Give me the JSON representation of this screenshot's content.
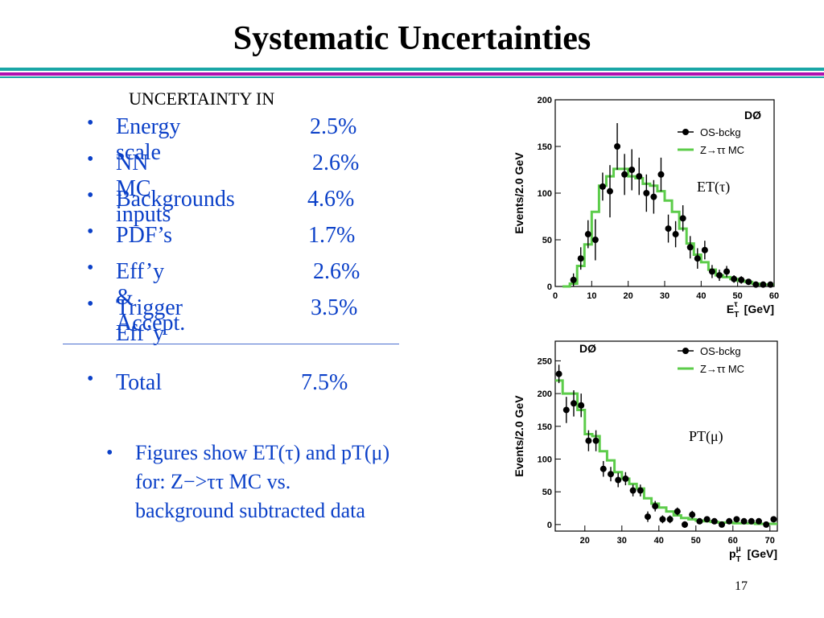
{
  "title": "Systematic Uncertainties",
  "subheading": "UNCERTAINTY IN",
  "bullet_symbol": "•",
  "items": [
    {
      "label": "Energy scale",
      "value": "2.5%"
    },
    {
      "label": "NN MC inputs",
      "value": "2.6%"
    },
    {
      "label": "Backgrounds",
      "value": "4.6%"
    },
    {
      "label": "PDF’s",
      "value": "1.7%"
    },
    {
      "label": "Eff’y & Accept.",
      "value": "2.6%"
    },
    {
      "label": "Trigger Eff’y",
      "value": "3.5%"
    }
  ],
  "total": {
    "label": "Total",
    "value": "7.5%"
  },
  "figure_note": {
    "line1": "Figures show ET(τ) and pT(μ)",
    "line2": "for: Z−>ττ MC vs.",
    "line3": "background subtracted data"
  },
  "page_number": "17",
  "colors": {
    "text_blue": "#0b40c8",
    "mc_green": "#5ccc4a",
    "rule_teal": "#1aa6a6",
    "rule_purple": "#b012b0"
  },
  "chart_data": [
    {
      "type": "scatter",
      "experiment_label": "DØ",
      "ylabel": "Events/2.0 GeV",
      "xlabel": "E_T^τ [GeV]",
      "xlabel_main": "E",
      "xlabel_sub": "T",
      "xlabel_sup": "τ",
      "xlabel_unit": "[GeV]",
      "annotation": "ET(τ)",
      "xlim": [
        0,
        60
      ],
      "ylim": [
        0,
        200
      ],
      "xticks": [
        0,
        10,
        20,
        30,
        40,
        50,
        60
      ],
      "yticks": [
        0,
        50,
        100,
        150,
        200
      ],
      "legend": [
        {
          "name": "OS-bckg",
          "kind": "points"
        },
        {
          "name": "Z→ττ MC",
          "kind": "step"
        }
      ],
      "legend_position": "top-right",
      "series": [
        {
          "name": "OS-bckg",
          "kind": "points",
          "x": [
            5,
            7,
            9,
            11,
            13,
            15,
            17,
            19,
            21,
            23,
            25,
            27,
            29,
            31,
            33,
            35,
            37,
            39,
            41,
            43,
            45,
            47,
            49,
            51,
            53,
            55,
            57,
            59
          ],
          "y": [
            7,
            30,
            56,
            50,
            107,
            102,
            150,
            120,
            125,
            118,
            100,
            96,
            120,
            62,
            56,
            73,
            42,
            30,
            39,
            16,
            12,
            16,
            8,
            7,
            5,
            2,
            2,
            2
          ],
          "err": [
            7,
            12,
            15,
            22,
            15,
            28,
            25,
            22,
            22,
            20,
            20,
            18,
            18,
            15,
            14,
            14,
            12,
            11,
            10,
            7,
            6,
            6,
            4,
            4,
            3,
            3,
            2,
            2
          ]
        },
        {
          "name": "Z→ττ MC",
          "kind": "step",
          "x": [
            2,
            4,
            6,
            8,
            10,
            12,
            14,
            16,
            18,
            20,
            22,
            24,
            26,
            28,
            30,
            32,
            34,
            36,
            38,
            40,
            42,
            44,
            46,
            48,
            50,
            52,
            54,
            56,
            58,
            60
          ],
          "y": [
            0,
            3,
            22,
            45,
            80,
            108,
            118,
            126,
            126,
            118,
            116,
            110,
            108,
            102,
            92,
            80,
            62,
            46,
            34,
            26,
            18,
            12,
            10,
            8,
            6,
            5,
            3,
            2,
            2,
            1
          ]
        }
      ]
    },
    {
      "type": "scatter",
      "experiment_label": "DØ",
      "ylabel": "Events/2.0 GeV",
      "xlabel": "p_T^μ [GeV]",
      "xlabel_main": "p",
      "xlabel_sub": "T",
      "xlabel_sup": "μ",
      "xlabel_unit": "[GeV]",
      "annotation": "PT(μ)",
      "xlim": [
        12,
        72
      ],
      "ylim": [
        -10,
        280
      ],
      "xticks": [
        20,
        30,
        40,
        50,
        60,
        70
      ],
      "yticks": [
        0,
        50,
        100,
        150,
        200,
        250
      ],
      "legend": [
        {
          "name": "OS-bckg",
          "kind": "points"
        },
        {
          "name": "Z→ττ MC",
          "kind": "step"
        }
      ],
      "legend_position": "top-right",
      "series": [
        {
          "name": "OS-bckg",
          "kind": "points",
          "x": [
            13,
            15,
            17,
            19,
            21,
            23,
            25,
            27,
            29,
            31,
            33,
            35,
            37,
            39,
            41,
            43,
            45,
            47,
            49,
            51,
            53,
            55,
            57,
            59,
            61,
            63,
            65,
            67,
            69,
            71
          ],
          "y": [
            230,
            175,
            185,
            182,
            128,
            128,
            85,
            77,
            68,
            70,
            52,
            52,
            12,
            28,
            8,
            8,
            20,
            0,
            15,
            5,
            8,
            5,
            0,
            5,
            8,
            5,
            5,
            5,
            0,
            8
          ],
          "err": [
            14,
            20,
            20,
            18,
            16,
            16,
            12,
            11,
            11,
            10,
            9,
            9,
            8,
            8,
            6,
            6,
            6,
            5,
            6,
            4,
            4,
            4,
            3,
            4,
            4,
            3,
            3,
            3,
            3,
            4
          ]
        },
        {
          "name": "Z→ττ MC",
          "kind": "step",
          "x": [
            12,
            14,
            16,
            18,
            20,
            22,
            24,
            26,
            28,
            30,
            32,
            34,
            36,
            38,
            40,
            42,
            44,
            46,
            48,
            50,
            52,
            54,
            56,
            58,
            60,
            62,
            64,
            66,
            68,
            70,
            72
          ],
          "y": [
            220,
            200,
            200,
            175,
            138,
            135,
            112,
            98,
            80,
            70,
            62,
            55,
            40,
            32,
            26,
            20,
            14,
            10,
            8,
            6,
            5,
            4,
            3,
            3,
            2,
            2,
            2,
            1,
            1,
            1,
            1
          ]
        }
      ]
    }
  ]
}
